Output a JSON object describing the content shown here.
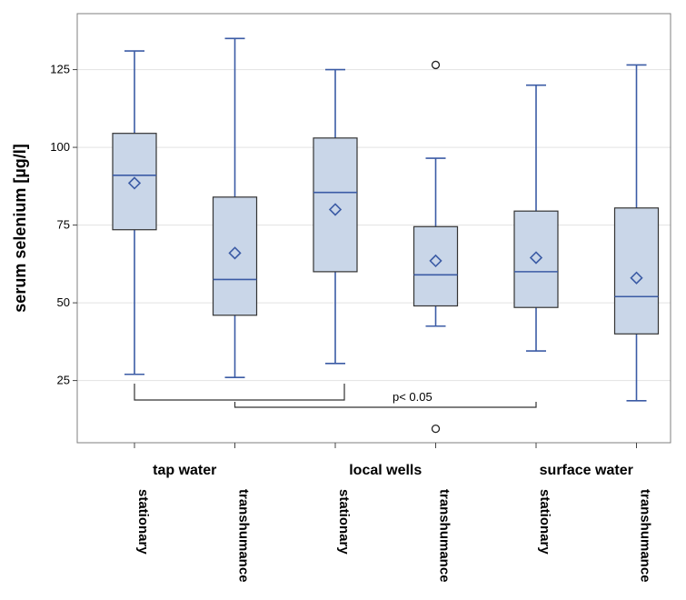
{
  "chart_data": {
    "type": "box",
    "title": "",
    "xlabel": "",
    "ylabel": "serum selenium [µg/l]",
    "ylim": [
      5,
      143
    ],
    "yticks": [
      25,
      50,
      75,
      100,
      125
    ],
    "grid": "horizontal",
    "groups": [
      {
        "label": "tap water",
        "categories": [
          "stationary",
          "transhumance"
        ]
      },
      {
        "label": "local wells",
        "categories": [
          "stationary",
          "transhumance"
        ]
      },
      {
        "label": "surface water",
        "categories": [
          "stationary",
          "transhumance"
        ]
      }
    ],
    "boxes": [
      {
        "group": "tap water",
        "category": "stationary",
        "min": 27,
        "q1": 73.5,
        "median": 91,
        "q3": 104.5,
        "max": 131,
        "mean": 88.5,
        "outliers": []
      },
      {
        "group": "tap water",
        "category": "transhumance",
        "min": 26,
        "q1": 46,
        "median": 57.5,
        "q3": 84,
        "max": 135,
        "mean": 66,
        "outliers": []
      },
      {
        "group": "local wells",
        "category": "stationary",
        "min": 30.5,
        "q1": 60,
        "median": 85.5,
        "q3": 103,
        "max": 125,
        "mean": 80,
        "outliers": []
      },
      {
        "group": "local wells",
        "category": "transhumance",
        "min": 42.5,
        "q1": 49,
        "median": 59,
        "q3": 74.5,
        "max": 96.5,
        "mean": 63.5,
        "outliers": [
          126.5,
          9.5
        ]
      },
      {
        "group": "surface water",
        "category": "stationary",
        "min": 34.5,
        "q1": 48.5,
        "median": 60,
        "q3": 79.5,
        "max": 120,
        "mean": 64.5,
        "outliers": []
      },
      {
        "group": "surface water",
        "category": "transhumance",
        "min": 18.5,
        "q1": 40,
        "median": 52,
        "q3": 80.5,
        "max": 126.5,
        "mean": 58,
        "outliers": []
      }
    ],
    "annotation": {
      "text": "p< 0.05"
    },
    "colors": {
      "box_fill": "#c9d6e8",
      "whisker": "#3b5ba5",
      "box_border": "#333333",
      "grid": "#e3e3e3"
    }
  }
}
